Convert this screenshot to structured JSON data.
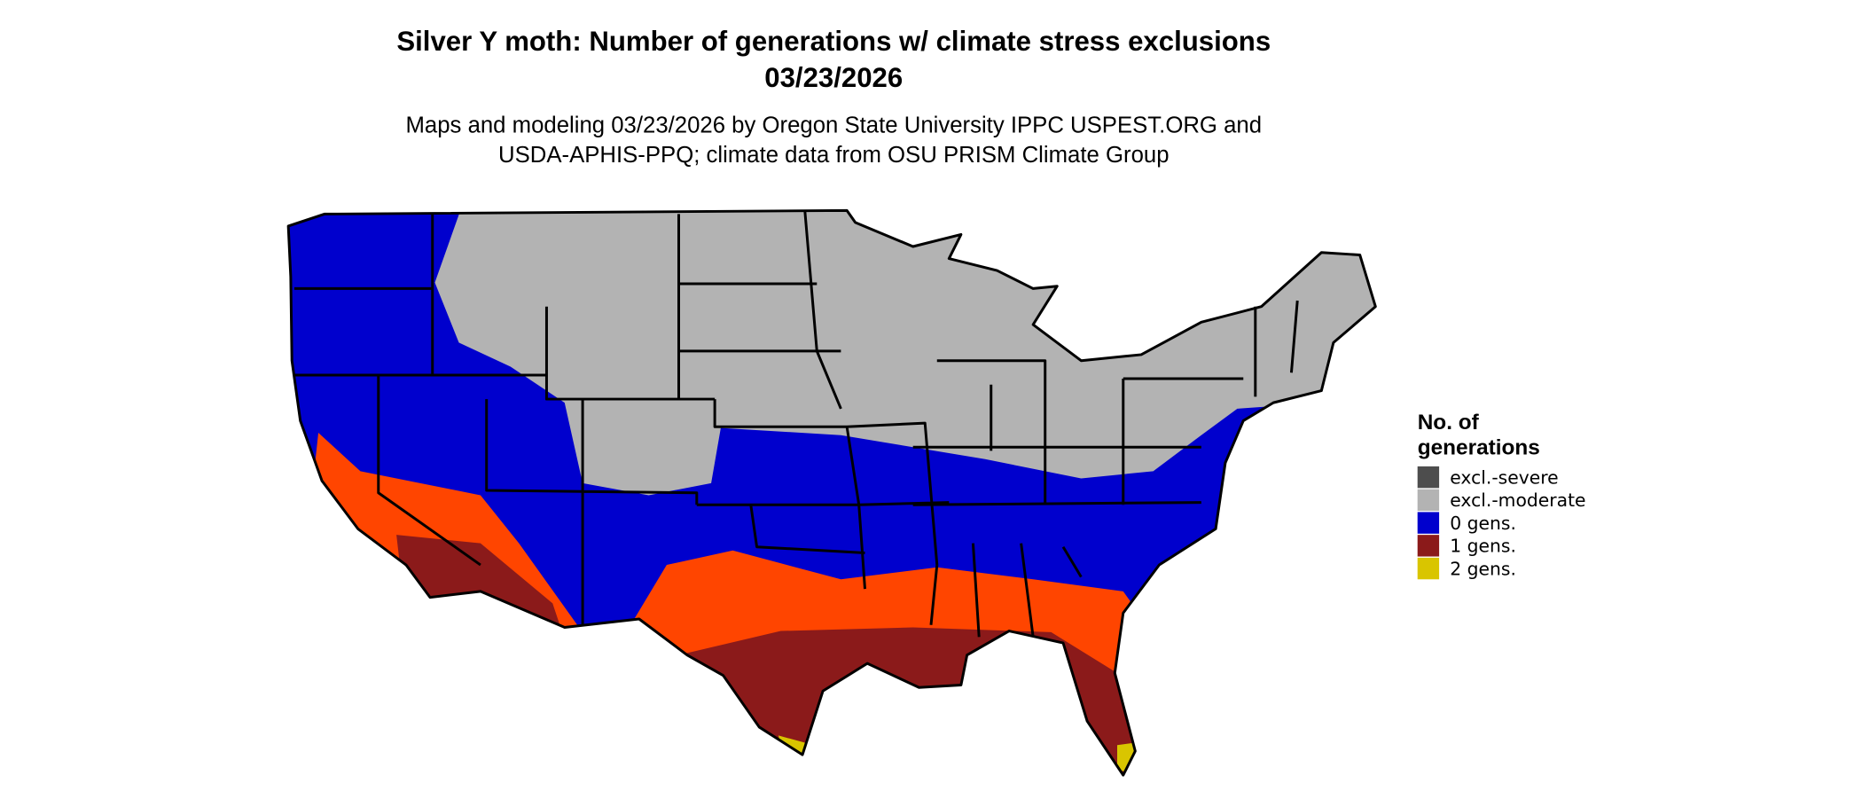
{
  "title": [
    "Silver Y moth: Number of generations w/ climate stress exclusions",
    "03/23/2026"
  ],
  "subtitle": [
    "Maps and modeling 03/23/2026 by Oregon State University IPPC USPEST.ORG and",
    "USDA-APHIS-PPQ; climate data from OSU PRISM Climate Group"
  ],
  "legend": {
    "title": [
      "No. of",
      "generations"
    ],
    "items": [
      {
        "label": "excl.-severe",
        "color": "#4d4d4d"
      },
      {
        "label": "excl.-moderate",
        "color": "#b3b3b3"
      },
      {
        "label": "0 gens.",
        "color": "#0000cd"
      },
      {
        "label": "1 gens.",
        "color": "#8b1a1a"
      },
      {
        "label": "2 gens.",
        "color": "#d9c500"
      }
    ]
  }
}
